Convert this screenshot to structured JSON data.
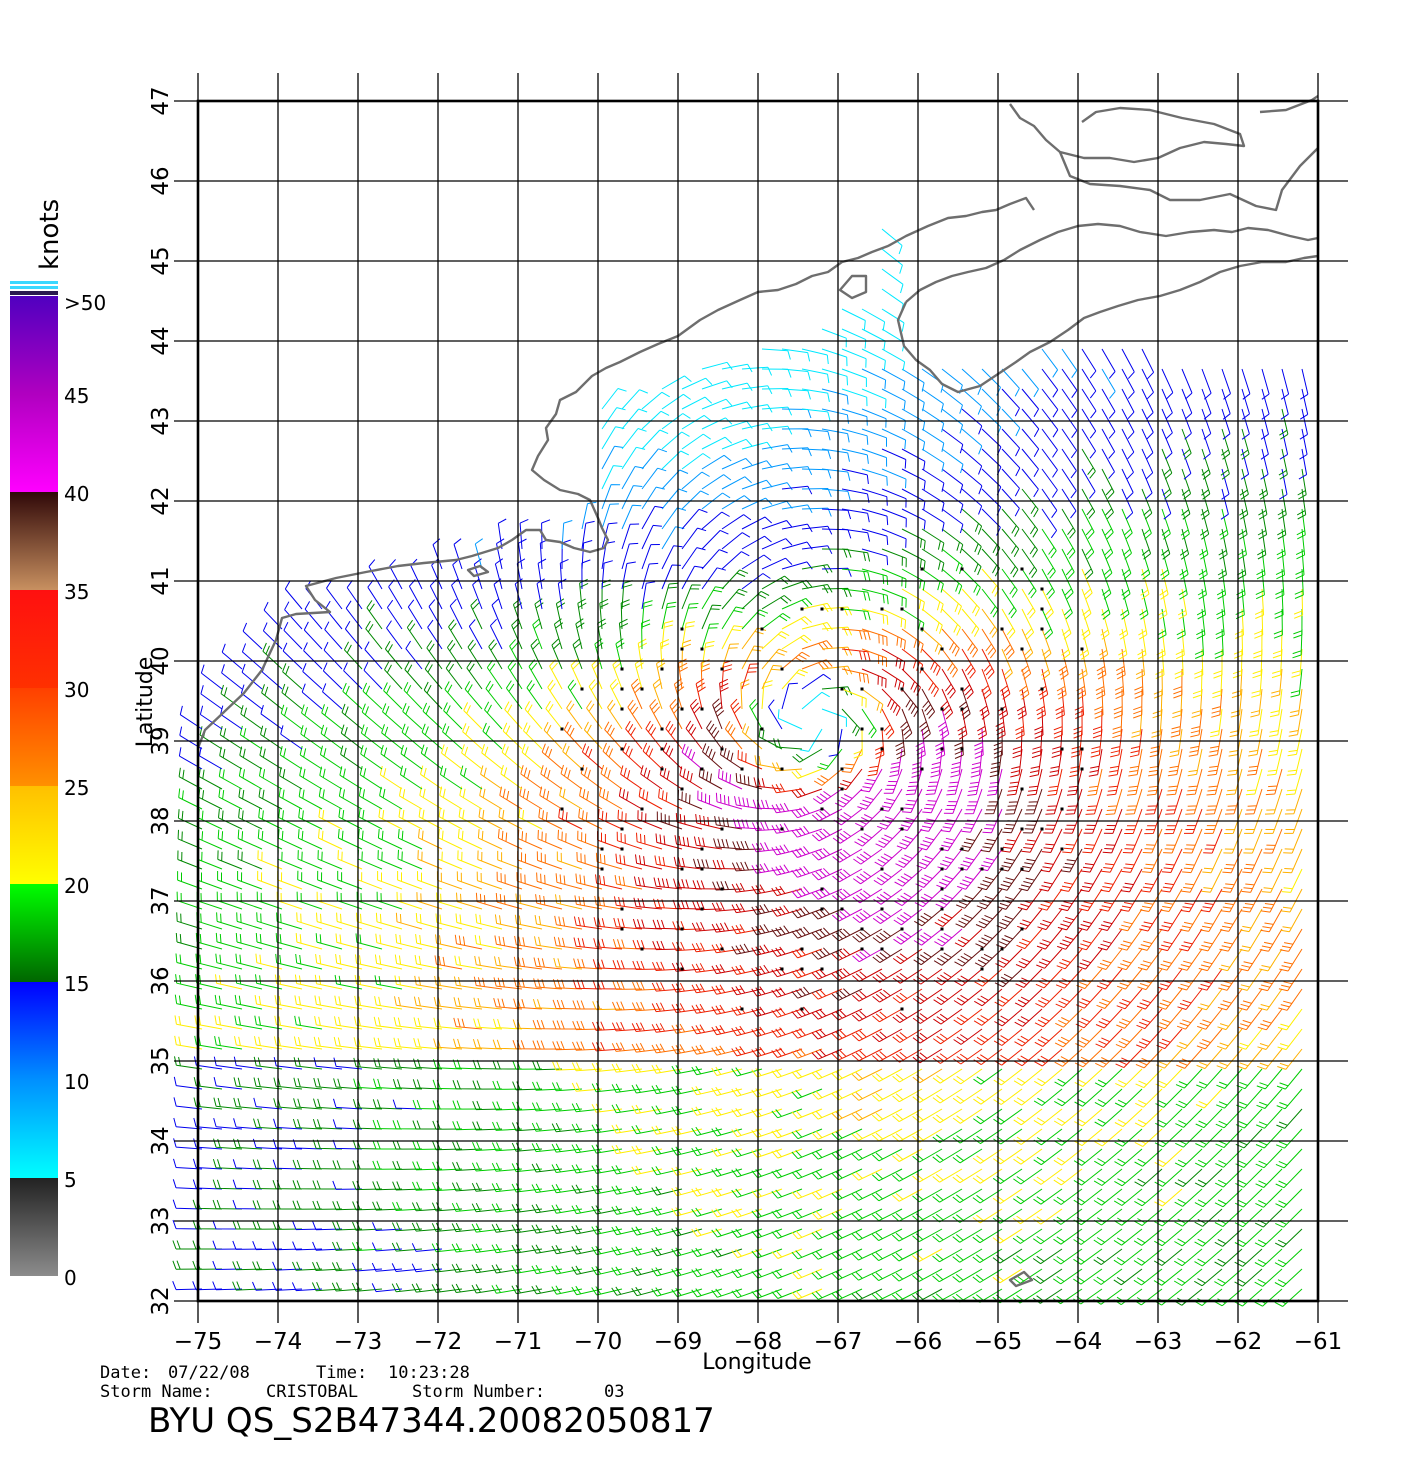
{
  "map": {
    "xlabel": "Longitude",
    "ylabel": "Latitude",
    "lon_range": [
      -75,
      -61
    ],
    "lat_range": [
      32,
      47
    ],
    "lon_ticks": [
      "−75",
      "−74",
      "−73",
      "−72",
      "−71",
      "−70",
      "−69",
      "−68",
      "−67",
      "−66",
      "−65",
      "−64",
      "−63",
      "−62",
      "−61"
    ],
    "lat_ticks": [
      "32",
      "33",
      "34",
      "35",
      "36",
      "37",
      "38",
      "39",
      "40",
      "41",
      "42",
      "43",
      "44",
      "45",
      "46",
      "47"
    ],
    "storm_center": [
      -67.2,
      39.0
    ],
    "coast_color": "#6e6e6e"
  },
  "legend": {
    "unit": "knots",
    "labels": [
      "0",
      "5",
      "10",
      "15",
      "20",
      "25",
      "30",
      "35",
      "40",
      "45",
      ">50"
    ],
    "bands": [
      {
        "from": 0,
        "to": 5,
        "colors": [
          "#8c8c8c",
          "#222222"
        ]
      },
      {
        "from": 5,
        "to": 10,
        "colors": [
          "#00ffff",
          "#0090ff"
        ]
      },
      {
        "from": 10,
        "to": 15,
        "colors": [
          "#0090ff",
          "#0000ff"
        ]
      },
      {
        "from": 15,
        "to": 20,
        "colors": [
          "#006600",
          "#00ff00"
        ]
      },
      {
        "from": 20,
        "to": 25,
        "colors": [
          "#ffff00",
          "#ffc000"
        ]
      },
      {
        "from": 25,
        "to": 30,
        "colors": [
          "#ff9000",
          "#ff4000"
        ]
      },
      {
        "from": 30,
        "to": 35,
        "colors": [
          "#ff3000",
          "#ff1010"
        ]
      },
      {
        "from": 35,
        "to": 40,
        "colors": [
          "#c89060",
          "#300808"
        ]
      },
      {
        "from": 40,
        "to": 45,
        "colors": [
          "#ff00ff",
          "#b000c0"
        ]
      },
      {
        "from": 45,
        "to": 50,
        "colors": [
          "#b000c0",
          "#5000c0"
        ]
      }
    ]
  },
  "footer": {
    "date_label": "Date:",
    "date": "07/22/08",
    "time_label": "Time:",
    "time": "10:23:28",
    "storm_name_label": "Storm  Name:",
    "storm_name": "CRISTOBAL",
    "storm_number_label": "Storm  Number:",
    "storm_number": "03",
    "product_id": "BYU  QS_S2B47344.20082050817"
  }
}
